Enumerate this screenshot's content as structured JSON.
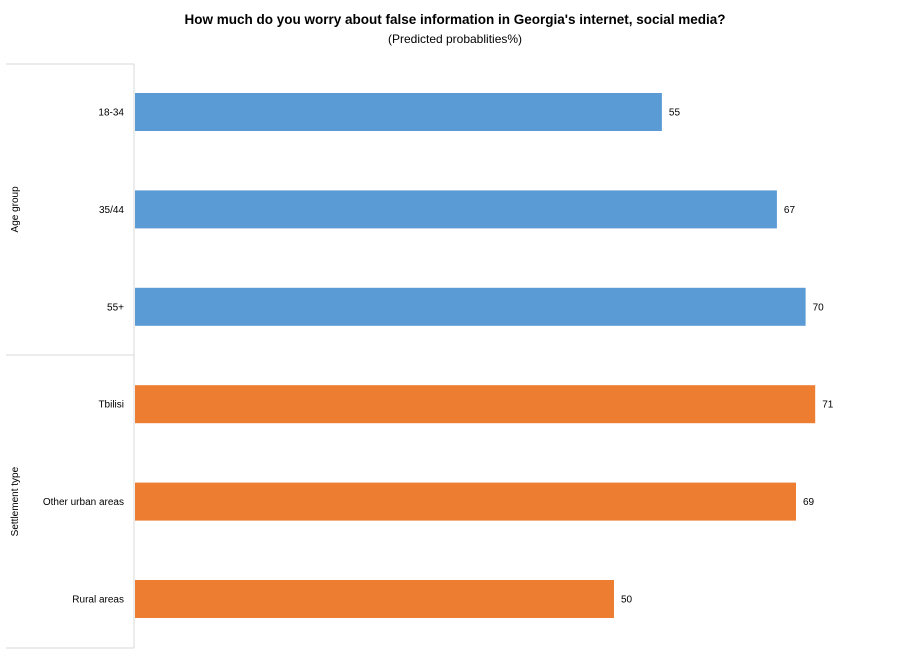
{
  "chart_data": {
    "type": "bar",
    "orientation": "horizontal",
    "title": "How much do you worry about false information in Georgia's internet, social media?",
    "subtitle": "(Predicted probablities%)",
    "groups": [
      {
        "name": "Age group",
        "color": "#5B9BD5",
        "categories": [
          "18-34",
          "35/44",
          "55+"
        ],
        "values": [
          55,
          67,
          70
        ]
      },
      {
        "name": "Settlement type",
        "color": "#ED7D31",
        "categories": [
          "Tbilisi",
          "Other urban areas",
          "Rural areas"
        ],
        "values": [
          71,
          69,
          50
        ]
      }
    ],
    "xlim": [
      0,
      80
    ],
    "grid": false,
    "legend": "none"
  }
}
